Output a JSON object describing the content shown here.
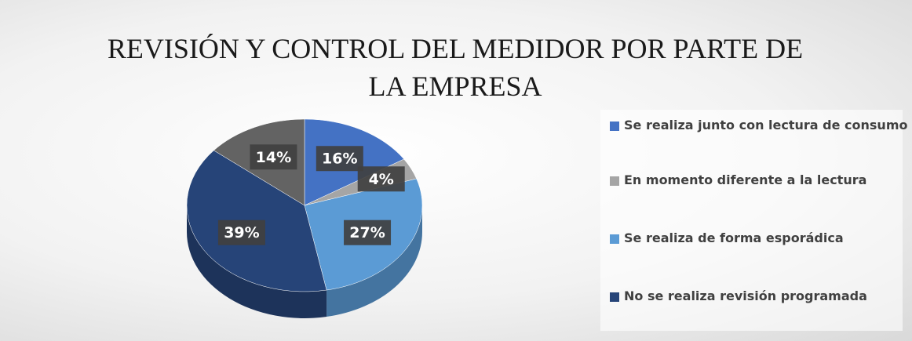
{
  "chart_data": {
    "type": "pie",
    "title": "REVISIÓN Y CONTROL DEL MEDIDOR POR PARTE DE LA EMPRESA",
    "categories": [
      "Se realiza junto con lectura de consumo",
      "En momento diferente a la lectura",
      "Se realiza de forma esporádica",
      "No se realiza revisión programada",
      null
    ],
    "values": [
      16,
      4,
      27,
      39,
      14
    ],
    "value_labels": [
      "16%",
      "4%",
      "27%",
      "39%",
      "14%"
    ],
    "colors": [
      "#4472c4",
      "#a5a5a5",
      "#5b9bd5",
      "#264478",
      "#636363"
    ],
    "legend": "right"
  }
}
